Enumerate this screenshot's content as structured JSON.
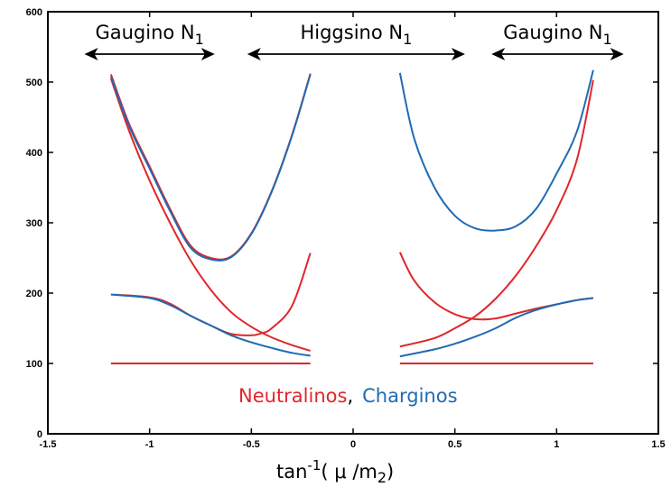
{
  "chart_data": {
    "type": "line",
    "title": "",
    "xlabel": {
      "main": "tan",
      "sup": "-1",
      "open": "( ",
      "mu": "μ",
      "slash": " /m",
      "sub": "2",
      "close": ")"
    },
    "ylabel": "",
    "xlim": [
      -1.5,
      1.5
    ],
    "ylim": [
      0,
      600
    ],
    "x_ticks": [
      "-1.5",
      "-1",
      "-0.5",
      "0",
      "0.5",
      "1",
      "1.5"
    ],
    "y_ticks": [
      "0",
      "100",
      "200",
      "300",
      "400",
      "500",
      "600"
    ],
    "grid": false,
    "regions": [
      {
        "text": "Gaugino N",
        "sub": "1",
        "x_from": -1.32,
        "x_to": -0.68
      },
      {
        "text": "Higgsino N",
        "sub": "1",
        "x_from": -0.52,
        "x_to": 0.55
      },
      {
        "text": "Gaugino N",
        "sub": "1",
        "x_from": 0.68,
        "x_to": 1.33
      }
    ],
    "legend": {
      "neutralinos": "Neutralinos",
      "comma": ",",
      "charginos": "Charginos"
    },
    "colors": {
      "neutralino": "#e0262b",
      "chargino": "#1f6bb3"
    },
    "series": [
      {
        "group": "neutralino",
        "values": [
          [
            -1.19,
            511
          ],
          [
            -1.1,
            440
          ],
          [
            -1.0,
            380
          ],
          [
            -0.9,
            320
          ],
          [
            -0.8,
            268
          ],
          [
            -0.7,
            250
          ],
          [
            -0.6,
            252
          ],
          [
            -0.5,
            285
          ],
          [
            -0.4,
            345
          ],
          [
            -0.3,
            425
          ],
          [
            -0.21,
            512
          ]
        ]
      },
      {
        "group": "neutralino",
        "values": [
          [
            -1.19,
            505
          ],
          [
            -1.1,
            430
          ],
          [
            -1.0,
            360
          ],
          [
            -0.9,
            300
          ],
          [
            -0.8,
            247
          ],
          [
            -0.7,
            205
          ],
          [
            -0.6,
            173
          ],
          [
            -0.5,
            152
          ],
          [
            -0.4,
            137
          ],
          [
            -0.3,
            126
          ],
          [
            -0.21,
            118
          ]
        ]
      },
      {
        "group": "neutralino",
        "values": [
          [
            -1.19,
            198
          ],
          [
            -1.0,
            194
          ],
          [
            -0.9,
            185
          ],
          [
            -0.8,
            168
          ],
          [
            -0.7,
            154
          ],
          [
            -0.6,
            142
          ],
          [
            -0.5,
            140
          ],
          [
            -0.45,
            143
          ],
          [
            -0.4,
            150
          ],
          [
            -0.3,
            182
          ],
          [
            -0.21,
            257
          ]
        ]
      },
      {
        "group": "neutralino",
        "values": [
          [
            -1.19,
            100
          ],
          [
            -0.21,
            100
          ]
        ]
      },
      {
        "group": "neutralino",
        "values": [
          [
            0.23,
            258
          ],
          [
            0.3,
            218
          ],
          [
            0.4,
            187
          ],
          [
            0.5,
            170
          ],
          [
            0.6,
            163
          ],
          [
            0.7,
            164
          ],
          [
            0.8,
            171
          ],
          [
            0.9,
            178
          ],
          [
            1.0,
            184
          ],
          [
            1.1,
            190
          ],
          [
            1.18,
            193
          ]
        ]
      },
      {
        "group": "neutralino",
        "values": [
          [
            0.23,
            124
          ],
          [
            0.4,
            136
          ],
          [
            0.5,
            150
          ],
          [
            0.6,
            167
          ],
          [
            0.7,
            192
          ],
          [
            0.8,
            225
          ],
          [
            0.9,
            267
          ],
          [
            1.0,
            318
          ],
          [
            1.1,
            390
          ],
          [
            1.18,
            503
          ]
        ]
      },
      {
        "group": "neutralino",
        "values": [
          [
            0.23,
            100
          ],
          [
            1.18,
            100
          ]
        ]
      },
      {
        "group": "chargino",
        "values": [
          [
            -1.19,
            508
          ],
          [
            -1.1,
            437
          ],
          [
            -1.0,
            377
          ],
          [
            -0.9,
            317
          ],
          [
            -0.8,
            265
          ],
          [
            -0.7,
            248
          ],
          [
            -0.6,
            251
          ],
          [
            -0.5,
            284
          ],
          [
            -0.4,
            344
          ],
          [
            -0.3,
            424
          ],
          [
            -0.21,
            511
          ]
        ]
      },
      {
        "group": "chargino",
        "values": [
          [
            -1.19,
            198
          ],
          [
            -1.0,
            193
          ],
          [
            -0.9,
            183
          ],
          [
            -0.8,
            168
          ],
          [
            -0.7,
            154
          ],
          [
            -0.6,
            140
          ],
          [
            -0.5,
            130
          ],
          [
            -0.4,
            122
          ],
          [
            -0.3,
            115
          ],
          [
            -0.21,
            111
          ]
        ]
      },
      {
        "group": "chargino",
        "values": [
          [
            0.23,
            513
          ],
          [
            0.3,
            420
          ],
          [
            0.4,
            350
          ],
          [
            0.5,
            310
          ],
          [
            0.6,
            292
          ],
          [
            0.7,
            289
          ],
          [
            0.8,
            295
          ],
          [
            0.9,
            320
          ],
          [
            1.0,
            370
          ],
          [
            1.1,
            430
          ],
          [
            1.18,
            517
          ]
        ]
      },
      {
        "group": "chargino",
        "values": [
          [
            0.23,
            110
          ],
          [
            0.4,
            120
          ],
          [
            0.5,
            128
          ],
          [
            0.6,
            138
          ],
          [
            0.7,
            150
          ],
          [
            0.8,
            165
          ],
          [
            0.9,
            176
          ],
          [
            1.0,
            184
          ],
          [
            1.1,
            190
          ],
          [
            1.18,
            193
          ]
        ]
      }
    ]
  }
}
